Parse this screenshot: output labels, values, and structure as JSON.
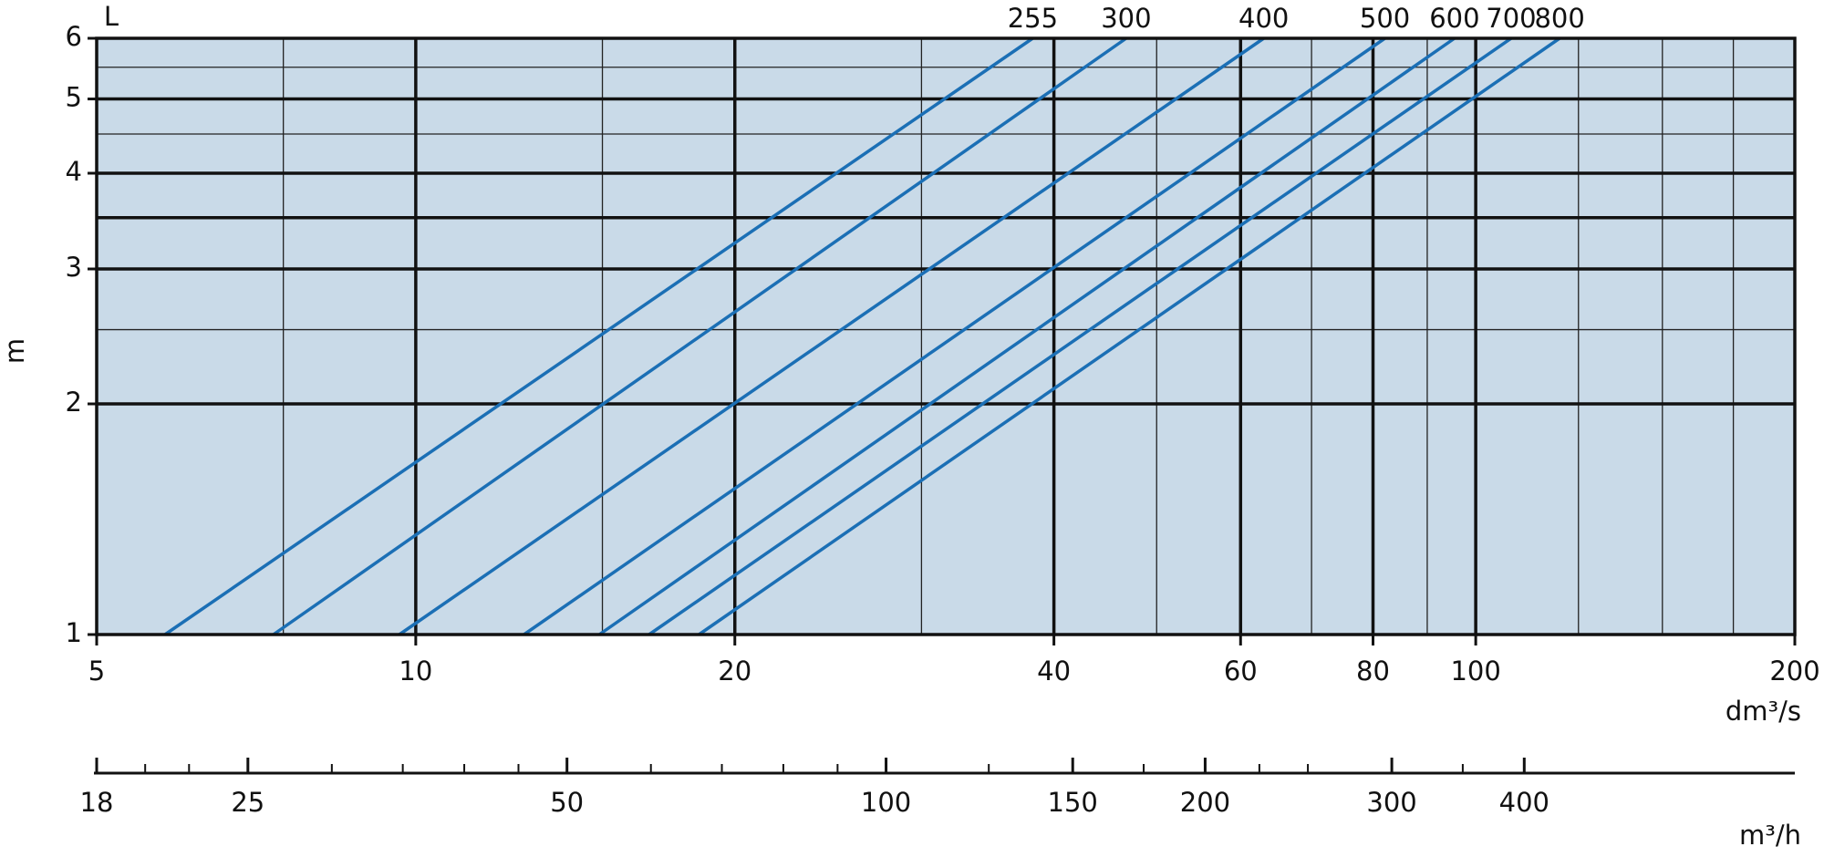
{
  "chart_data": {
    "type": "line",
    "title": "L",
    "y_label": "m",
    "x_label": "dm³/s",
    "x2_label": "m³/h",
    "xscale": "log",
    "yscale": "log",
    "xlim": [
      5,
      200
    ],
    "ylim": [
      1,
      6
    ],
    "xticks": [
      5,
      10,
      20,
      40,
      60,
      80,
      100,
      200
    ],
    "yticks": [
      1,
      2,
      3,
      4,
      5,
      6
    ],
    "xgrid_major": [
      10,
      20,
      40,
      60,
      80,
      100
    ],
    "xgrid_minor": [
      7.5,
      15,
      30,
      50,
      70,
      90,
      125,
      150,
      175
    ],
    "ygrid_major": [
      2,
      3,
      3.5,
      4,
      5
    ],
    "ygrid_minor": [
      2.5,
      4.5,
      5.5
    ],
    "x2lim": [
      18,
      720
    ],
    "x2ticks": [
      18,
      25,
      50,
      100,
      150,
      200,
      300,
      400
    ],
    "x2minor_ticks": [
      20,
      22,
      30,
      35,
      40,
      45,
      60,
      70,
      80,
      90,
      125,
      175,
      225,
      250,
      350
    ],
    "background": "#c9dae8",
    "series": [
      {
        "name": "255",
        "color": "#1b6fb5",
        "x": [
          5.8,
          38.2
        ],
        "y": [
          1,
          6
        ]
      },
      {
        "name": "300",
        "color": "#1b6fb5",
        "x": [
          7.34,
          46.8
        ],
        "y": [
          1,
          6
        ]
      },
      {
        "name": "400",
        "color": "#1b6fb5",
        "x": [
          9.65,
          63.1
        ],
        "y": [
          1,
          6
        ]
      },
      {
        "name": "500",
        "color": "#1b6fb5",
        "x": [
          12.65,
          82.1
        ],
        "y": [
          1,
          6
        ]
      },
      {
        "name": "600",
        "color": "#1b6fb5",
        "x": [
          14.9,
          95.5
        ],
        "y": [
          1,
          6
        ]
      },
      {
        "name": "700",
        "color": "#1b6fb5",
        "x": [
          16.6,
          108
        ],
        "y": [
          1,
          6
        ]
      },
      {
        "name": "800",
        "color": "#1b6fb5",
        "x": [
          18.5,
          120
        ],
        "y": [
          1,
          6
        ]
      }
    ]
  }
}
